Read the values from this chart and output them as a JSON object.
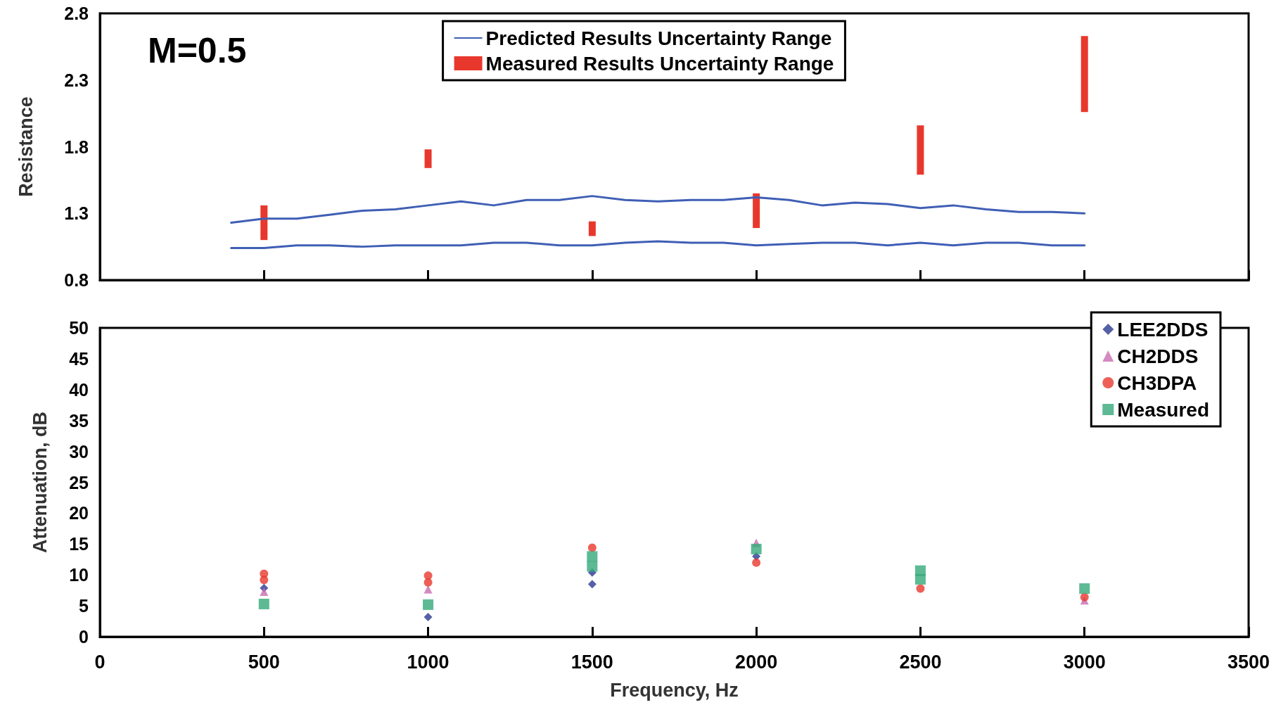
{
  "chart_data": [
    {
      "type": "line",
      "ylabel": "Resistance",
      "annotations": [
        "M=0.5"
      ],
      "legend": "top",
      "grid": false,
      "tick_labels": "y",
      "line_style": "solid",
      "marker": "none",
      "xlim": [
        0,
        3500
      ],
      "xticks": [
        0,
        500,
        1000,
        1500,
        2000,
        2500,
        3000,
        3500
      ],
      "ylim": [
        0.8,
        2.8
      ],
      "yticks": [
        0.8,
        1.3,
        1.8,
        2.3,
        2.8
      ],
      "series": [
        {
          "name": "Predicted Results Uncertainty Range",
          "color": "#3f5fb5",
          "x": [
            400,
            500,
            600,
            700,
            800,
            900,
            1000,
            1100,
            1200,
            1300,
            1400,
            1500,
            1600,
            1700,
            1800,
            1900,
            2000,
            2100,
            2200,
            2300,
            2400,
            2500,
            2600,
            2700,
            2800,
            2900,
            3000
          ],
          "values": [
            1.23,
            1.26,
            1.26,
            1.29,
            1.32,
            1.33,
            1.36,
            1.39,
            1.36,
            1.4,
            1.4,
            1.43,
            1.4,
            1.39,
            1.4,
            1.4,
            1.42,
            1.4,
            1.36,
            1.38,
            1.37,
            1.34,
            1.36,
            1.33,
            1.31,
            1.31,
            1.3
          ]
        },
        {
          "color": "#3f5fb5",
          "x": [
            400,
            500,
            600,
            700,
            800,
            900,
            1000,
            1100,
            1200,
            1300,
            1400,
            1500,
            1600,
            1700,
            1800,
            1900,
            2000,
            2100,
            2200,
            2300,
            2400,
            2500,
            2600,
            2700,
            2800,
            2900,
            3000
          ],
          "values": [
            1.04,
            1.04,
            1.06,
            1.06,
            1.05,
            1.06,
            1.06,
            1.06,
            1.08,
            1.08,
            1.06,
            1.06,
            1.08,
            1.09,
            1.08,
            1.08,
            1.06,
            1.07,
            1.08,
            1.08,
            1.06,
            1.08,
            1.06,
            1.08,
            1.08,
            1.06,
            1.06
          ]
        },
        {
          "name": "Measured Results Uncertainty Range",
          "type": "bar",
          "color": "#e8382d",
          "x": [
            500,
            1000,
            1500,
            2000,
            2500,
            3000
          ],
          "base": [
            1.1,
            1.64,
            1.13,
            1.19,
            1.59,
            2.06
          ],
          "values": [
            0.26,
            0.14,
            0.11,
            0.26,
            0.37,
            0.57
          ]
        }
      ]
    },
    {
      "type": "scatter",
      "xlabel": "Frequency, Hz",
      "ylabel": "Attenuation, dB",
      "legend": "top right",
      "grid": false,
      "xlim": [
        0,
        3500
      ],
      "xticks": [
        0,
        500,
        1000,
        1500,
        2000,
        2500,
        3000,
        3500
      ],
      "ylim": [
        0,
        50
      ],
      "yticks": [
        0,
        5,
        10,
        15,
        20,
        25,
        30,
        35,
        40,
        45,
        50
      ],
      "series": [
        {
          "name": "LEE2DDS",
          "color": "#2b3990",
          "marker": "diamond",
          "x": [
            500,
            1000,
            1500,
            1500,
            2000
          ],
          "values": [
            7.9,
            3.2,
            10.4,
            8.5,
            13.0
          ]
        },
        {
          "name": "CH2DDS",
          "color": "#c86db0",
          "marker": "triangle",
          "x": [
            500,
            1000,
            2000,
            3000
          ],
          "values": [
            7.3,
            7.7,
            15.2,
            5.9
          ]
        },
        {
          "name": "CH3DPA",
          "color": "#e8382d",
          "marker": "circle",
          "x": [
            500,
            500,
            1000,
            1000,
            1500,
            2000,
            2500,
            3000
          ],
          "values": [
            10.2,
            9.2,
            9.9,
            8.8,
            14.4,
            12.0,
            7.8,
            6.4
          ]
        },
        {
          "name": "Measured",
          "color": "#35a97a",
          "marker": "square",
          "x": [
            500,
            1000,
            1500,
            1500,
            2000,
            2500,
            2500,
            3000
          ],
          "values": [
            5.3,
            5.2,
            13.0,
            11.4,
            14.2,
            10.7,
            9.3,
            7.8
          ]
        }
      ]
    }
  ]
}
